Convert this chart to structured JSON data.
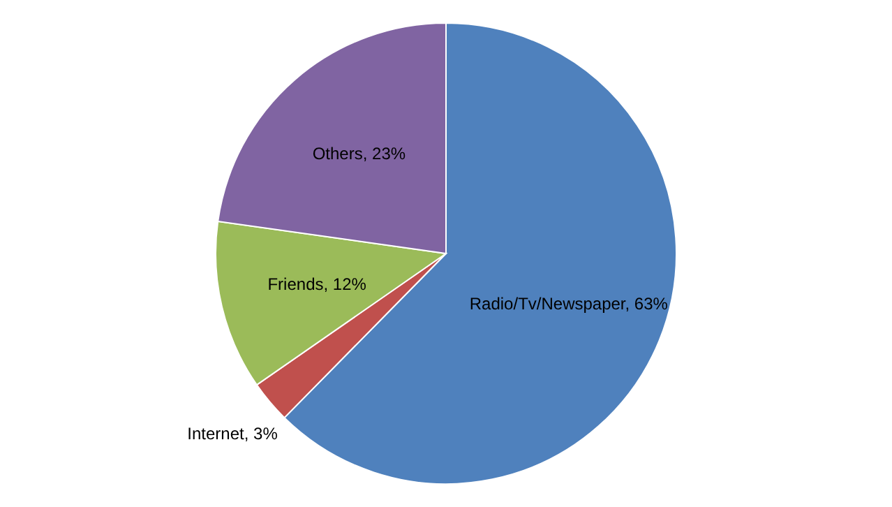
{
  "chart_data": {
    "type": "pie",
    "categories": [
      "Radio/Tv/Newspaper",
      "Internet",
      "Friends",
      "Others"
    ],
    "values": [
      63,
      3,
      12,
      23
    ],
    "value_labels": [
      "63%",
      "3%",
      "12%",
      "23%"
    ],
    "colors": [
      "#4f81bd",
      "#c0504d",
      "#9bbb59",
      "#8064a2"
    ]
  }
}
